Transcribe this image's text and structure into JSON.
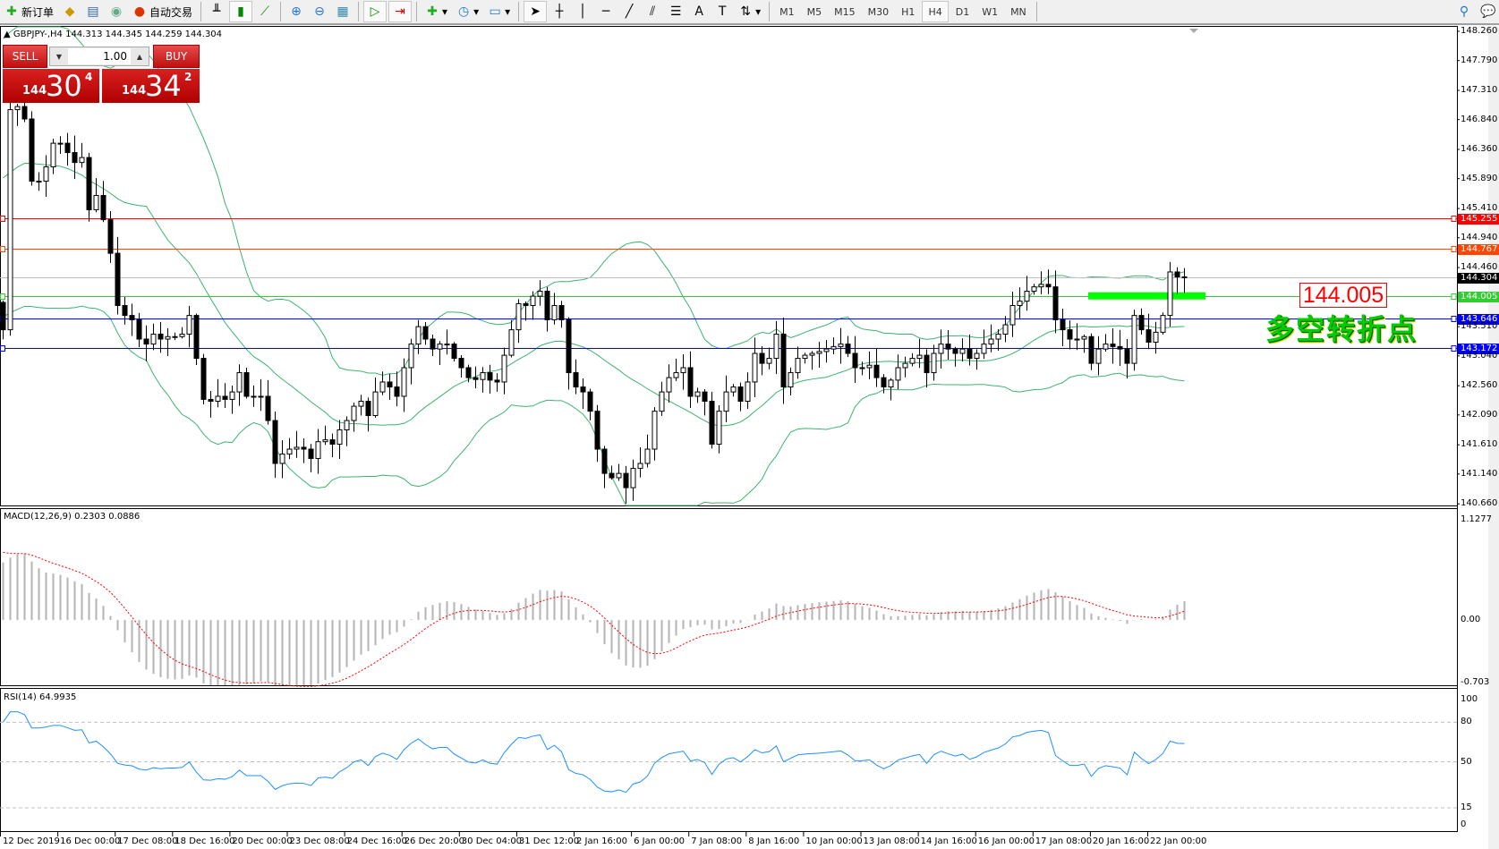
{
  "toolbar": {
    "new_order": "新订单",
    "auto_trading": "自动交易",
    "timeframes": [
      "M1",
      "M5",
      "M15",
      "M30",
      "H1",
      "H4",
      "D1",
      "W1",
      "MN"
    ],
    "selected_timeframe": "H4"
  },
  "chart_header": {
    "symbol": "GBPJPY-,H4",
    "ohlc": "144.313 144.345 144.259 144.304"
  },
  "one_click": {
    "sell_label": "SELL",
    "buy_label": "BUY",
    "lot": "1.00",
    "sell_big": "144",
    "sell_main": "30",
    "sell_pip": "4",
    "buy_big": "144",
    "buy_main": "34",
    "buy_pip": "2"
  },
  "annotation": {
    "price_box": "144.005",
    "text": "多空转折点",
    "zone_color": "#00ff00"
  },
  "macd": {
    "label": "MACD(12,26,9) 0.2303 0.0886",
    "axis": [
      "1.1277",
      "0.00",
      "-0.703"
    ]
  },
  "rsi": {
    "label": "RSI(14) 64.9935",
    "axis": [
      "100",
      "80",
      "50",
      "15",
      "0"
    ]
  },
  "chart_data": {
    "type": "candlestick",
    "symbol": "GBPJPY",
    "timeframe": "H4",
    "ylim": [
      140.66,
      148.26
    ],
    "price_ticks": [
      "148.260",
      "147.790",
      "147.310",
      "146.840",
      "146.360",
      "145.890",
      "145.410",
      "144.940",
      "144.460",
      "143.510",
      "143.040",
      "142.560",
      "142.090",
      "141.610",
      "141.140",
      "140.660"
    ],
    "time_labels": [
      "12 Dec 2019",
      "16 Dec 00:00",
      "17 Dec 08:00",
      "18 Dec 16:00",
      "20 Dec 00:00",
      "23 Dec 08:00",
      "24 Dec 16:00",
      "26 Dec 20:00",
      "30 Dec 04:00",
      "31 Dec 12:00",
      "2 Jan 16:00",
      "6 Jan 00:00",
      "7 Jan 08:00",
      "8 Jan 16:00",
      "10 Jan 00:00",
      "13 Jan 08:00",
      "14 Jan 16:00",
      "16 Jan 00:00",
      "17 Jan 08:00",
      "20 Jan 16:00",
      "22 Jan 00:00"
    ],
    "close": [
      143.46,
      147.0,
      147.05,
      146.85,
      145.85,
      145.85,
      146.08,
      146.46,
      146.46,
      146.31,
      146.15,
      146.23,
      145.39,
      145.62,
      145.23,
      144.69,
      143.85,
      143.69,
      143.62,
      143.31,
      143.23,
      143.39,
      143.31,
      143.35,
      143.35,
      143.39,
      143.69,
      143.0,
      142.34,
      142.31,
      142.39,
      142.34,
      142.46,
      142.77,
      142.39,
      142.39,
      142.39,
      142.0,
      141.31,
      141.46,
      141.54,
      141.57,
      141.54,
      141.39,
      141.66,
      141.69,
      141.62,
      141.85,
      142.0,
      142.23,
      142.31,
      142.08,
      142.46,
      142.62,
      142.54,
      142.39,
      142.85,
      143.23,
      143.51,
      143.31,
      143.15,
      143.23,
      143.23,
      143.0,
      142.85,
      142.69,
      142.66,
      142.77,
      142.65,
      142.62,
      143.05,
      143.46,
      143.88,
      143.85,
      144.0,
      144.08,
      143.62,
      143.85,
      143.62,
      142.77,
      142.54,
      142.46,
      142.15,
      141.54,
      141.15,
      141.08,
      141.15,
      140.92,
      141.23,
      141.31,
      141.54,
      142.15,
      142.46,
      142.69,
      142.77,
      142.85,
      142.39,
      142.46,
      142.31,
      141.62,
      142.15,
      142.46,
      142.54,
      142.31,
      142.62,
      143.08,
      142.92,
      143.0,
      143.39,
      142.54,
      142.77,
      143.0,
      143.05,
      143.08,
      143.11,
      143.15,
      143.19,
      143.23,
      143.08,
      142.85,
      142.85,
      142.89,
      142.69,
      142.54,
      142.65,
      142.85,
      142.92,
      143.0,
      143.05,
      142.77,
      143.08,
      143.23,
      143.15,
      143.08,
      143.15,
      143.0,
      143.08,
      143.23,
      143.31,
      143.39,
      143.54,
      143.85,
      143.92,
      144.08,
      144.15,
      144.19,
      144.15,
      143.62,
      143.46,
      143.31,
      143.31,
      143.35,
      142.92,
      143.15,
      143.23,
      143.19,
      143.15,
      142.92,
      143.69,
      143.46,
      143.26,
      143.42,
      143.69,
      144.39,
      144.31,
      144.304
    ],
    "levels": [
      {
        "price": 145.255,
        "label": "145.255",
        "color": "#ff0000"
      },
      {
        "price": 144.767,
        "label": "144.767",
        "color": "#ff4500"
      },
      {
        "price": 144.304,
        "label": "144.304",
        "color": "#000000",
        "line": "#c0c0c0"
      },
      {
        "price": 144.005,
        "label": "144.005",
        "color": "#32cd32"
      },
      {
        "price": 143.646,
        "label": "143.646",
        "color": "#0000ff"
      },
      {
        "price": 143.172,
        "label": "143.172",
        "color": "#0000ff"
      }
    ],
    "indicators": {
      "bollinger": {
        "period": 20,
        "deviation": 2,
        "color": "#3cb371"
      },
      "macd": {
        "fast": 12,
        "slow": 26,
        "signal": 9,
        "ylim": [
          -0.703,
          1.1277
        ]
      },
      "rsi": {
        "period": 14,
        "levels": [
          80,
          50,
          15
        ],
        "color": "#1e90ff"
      }
    }
  }
}
